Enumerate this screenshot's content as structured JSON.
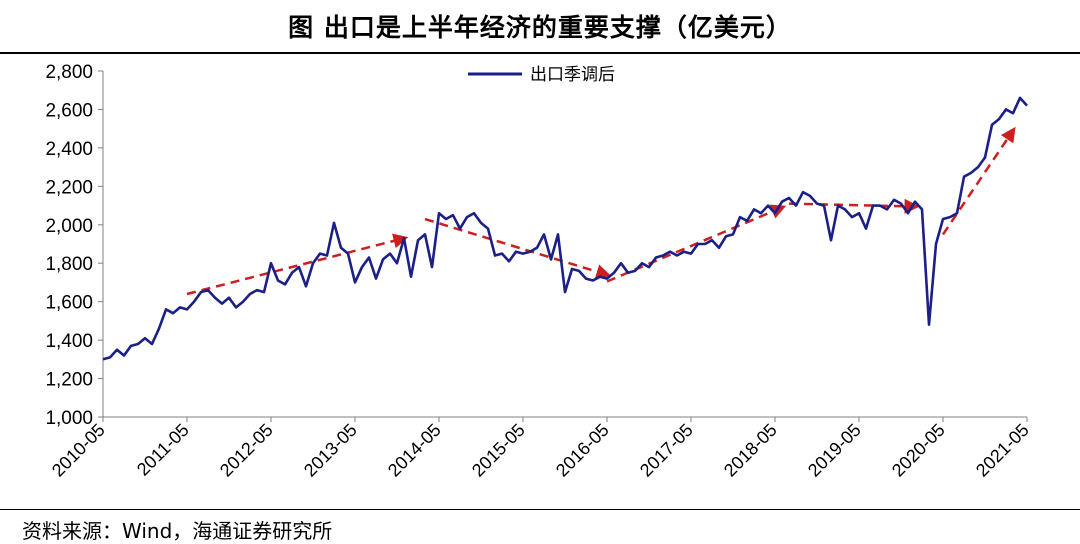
{
  "title": "图  出口是上半年经济的重要支撑（亿美元）",
  "source": "资料来源：Wind，海通证券研究所",
  "colors": {
    "series_line": "#1b1f86",
    "trend_arrow": "#cc1f1f",
    "axis": "#808080"
  },
  "chart_data": {
    "type": "line",
    "ylim": [
      1000,
      2800
    ],
    "yticks": [
      "1,000",
      "1,200",
      "1,400",
      "1,600",
      "1,800",
      "2,000",
      "2,200",
      "2,400",
      "2,600",
      "2,800"
    ],
    "ytick_values": [
      1000,
      1200,
      1400,
      1600,
      1800,
      2000,
      2200,
      2400,
      2600,
      2800
    ],
    "xticks": [
      "2010-05",
      "2011-05",
      "2012-05",
      "2013-05",
      "2014-05",
      "2015-05",
      "2016-05",
      "2017-05",
      "2018-05",
      "2019-05",
      "2020-05",
      "2021-05"
    ],
    "xlim": [
      "2010-05",
      "2021-05"
    ],
    "legend": "top-center",
    "grid": false,
    "series": [
      {
        "name": "出口季调后",
        "x": [
          "2010-05",
          "2010-06",
          "2010-07",
          "2010-08",
          "2010-09",
          "2010-10",
          "2010-11",
          "2010-12",
          "2011-01",
          "2011-02",
          "2011-03",
          "2011-04",
          "2011-05",
          "2011-06",
          "2011-07",
          "2011-08",
          "2011-09",
          "2011-10",
          "2011-11",
          "2011-12",
          "2012-01",
          "2012-02",
          "2012-03",
          "2012-04",
          "2012-05",
          "2012-06",
          "2012-07",
          "2012-08",
          "2012-09",
          "2012-10",
          "2012-11",
          "2012-12",
          "2013-01",
          "2013-02",
          "2013-03",
          "2013-04",
          "2013-05",
          "2013-06",
          "2013-07",
          "2013-08",
          "2013-09",
          "2013-10",
          "2013-11",
          "2013-12",
          "2014-01",
          "2014-02",
          "2014-03",
          "2014-04",
          "2014-05",
          "2014-06",
          "2014-07",
          "2014-08",
          "2014-09",
          "2014-10",
          "2014-11",
          "2014-12",
          "2015-01",
          "2015-02",
          "2015-03",
          "2015-04",
          "2015-05",
          "2015-06",
          "2015-07",
          "2015-08",
          "2015-09",
          "2015-10",
          "2015-11",
          "2015-12",
          "2016-01",
          "2016-02",
          "2016-03",
          "2016-04",
          "2016-05",
          "2016-06",
          "2016-07",
          "2016-08",
          "2016-09",
          "2016-10",
          "2016-11",
          "2016-12",
          "2017-01",
          "2017-02",
          "2017-03",
          "2017-04",
          "2017-05",
          "2017-06",
          "2017-07",
          "2017-08",
          "2017-09",
          "2017-10",
          "2017-11",
          "2017-12",
          "2018-01",
          "2018-02",
          "2018-03",
          "2018-04",
          "2018-05",
          "2018-06",
          "2018-07",
          "2018-08",
          "2018-09",
          "2018-10",
          "2018-11",
          "2018-12",
          "2019-01",
          "2019-02",
          "2019-03",
          "2019-04",
          "2019-05",
          "2019-06",
          "2019-07",
          "2019-08",
          "2019-09",
          "2019-10",
          "2019-11",
          "2019-12",
          "2020-01",
          "2020-02",
          "2020-03",
          "2020-04",
          "2020-05",
          "2020-06",
          "2020-07",
          "2020-08",
          "2020-09",
          "2020-10",
          "2020-11",
          "2020-12",
          "2021-01",
          "2021-02",
          "2021-03",
          "2021-04",
          "2021-05"
        ],
        "values": [
          1300,
          1310,
          1350,
          1320,
          1370,
          1380,
          1410,
          1380,
          1460,
          1560,
          1540,
          1570,
          1560,
          1600,
          1650,
          1660,
          1620,
          1590,
          1620,
          1570,
          1600,
          1640,
          1660,
          1650,
          1800,
          1710,
          1690,
          1750,
          1780,
          1680,
          1800,
          1850,
          1840,
          2010,
          1880,
          1850,
          1700,
          1780,
          1830,
          1720,
          1820,
          1850,
          1800,
          1930,
          1730,
          1920,
          1950,
          1780,
          2060,
          2030,
          2050,
          1980,
          2040,
          2060,
          2010,
          1980,
          1840,
          1850,
          1810,
          1860,
          1850,
          1860,
          1880,
          1950,
          1820,
          1950,
          1650,
          1770,
          1760,
          1720,
          1710,
          1730,
          1720,
          1750,
          1800,
          1750,
          1760,
          1800,
          1780,
          1830,
          1840,
          1860,
          1840,
          1860,
          1850,
          1900,
          1900,
          1920,
          1880,
          1940,
          1950,
          2040,
          2020,
          2080,
          2060,
          2100,
          2060,
          2120,
          2140,
          2100,
          2170,
          2150,
          2110,
          2100,
          1920,
          2100,
          2080,
          2040,
          2060,
          1980,
          2100,
          2100,
          2080,
          2130,
          2110,
          2060,
          2120,
          2080,
          1480,
          1900,
          2030,
          2040,
          2060,
          2250,
          2270,
          2300,
          2350,
          2520,
          2550,
          2600,
          2580,
          2660,
          2620
        ]
      }
    ],
    "trend_arrows": [
      {
        "from": [
          "2011-05",
          1640
        ],
        "to": [
          "2013-12",
          1930
        ]
      },
      {
        "from": [
          "2014-03",
          2030
        ],
        "to": [
          "2016-05",
          1740
        ]
      },
      {
        "from": [
          "2016-05",
          1705
        ],
        "to": [
          "2018-06",
          2090
        ]
      },
      {
        "from": [
          "2018-07",
          2110
        ],
        "to": [
          "2020-01",
          2095
        ]
      },
      {
        "from": [
          "2020-05",
          1950
        ],
        "to": [
          "2021-03",
          2490
        ]
      }
    ]
  }
}
